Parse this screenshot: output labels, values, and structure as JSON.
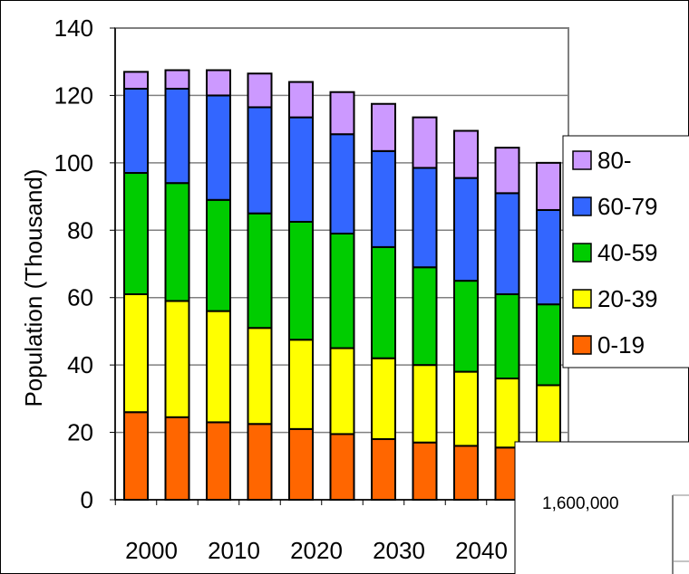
{
  "chart_data": {
    "type": "bar",
    "stacked": true,
    "categories": [
      "2000",
      "2005",
      "2010",
      "2015",
      "2020",
      "2025",
      "2030",
      "2035",
      "2040",
      "2045",
      "2050"
    ],
    "x_tick_labels": [
      "2000",
      "2010",
      "2020",
      "2030",
      "2040"
    ],
    "ylabel": "Population (Thousand)",
    "ylim": [
      0,
      140
    ],
    "yticks": [
      0,
      20,
      40,
      60,
      80,
      100,
      120,
      140
    ],
    "grid": true,
    "legend_position": "right",
    "series": [
      {
        "name": "0-19",
        "color": "#ff6600",
        "values": [
          26,
          24.5,
          23,
          22.5,
          21,
          19.5,
          18,
          17,
          16,
          15.5,
          14
        ]
      },
      {
        "name": "20-39",
        "color": "#ffff00",
        "values": [
          35,
          34.5,
          33,
          28.5,
          26.5,
          25.5,
          24,
          23,
          22,
          20.5,
          20
        ]
      },
      {
        "name": "40-59",
        "color": "#00cc00",
        "values": [
          36,
          35,
          33,
          34,
          35,
          34,
          33,
          29,
          27,
          25,
          24
        ]
      },
      {
        "name": "60-79",
        "color": "#3366ff",
        "values": [
          25,
          28,
          31,
          31.5,
          31,
          29.5,
          28.5,
          29.5,
          30.5,
          30,
          28
        ]
      },
      {
        "name": "80-",
        "color": "#cc99ff",
        "values": [
          5,
          5.5,
          7.5,
          10,
          10.5,
          12.5,
          14,
          15,
          14,
          13.5,
          14
        ]
      }
    ]
  },
  "inset": {
    "label": "1,600,000"
  }
}
